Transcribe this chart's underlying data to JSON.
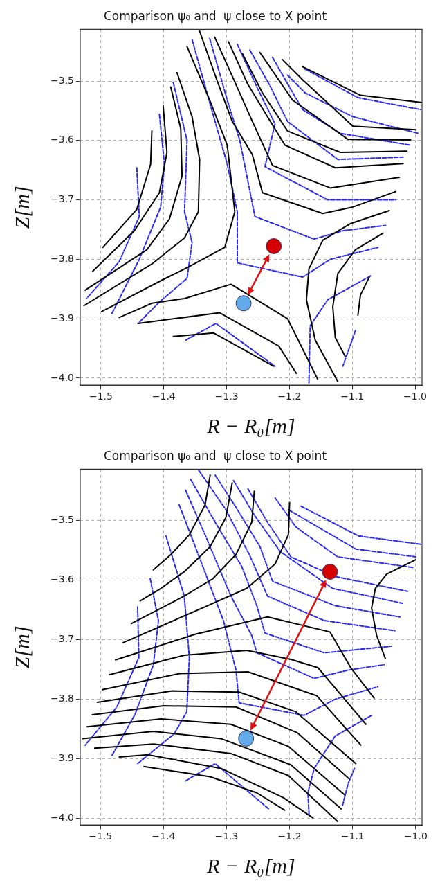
{
  "chart_data": [
    {
      "type": "line",
      "title": "Comparison ψ₀ and  ψ close to X point",
      "xlabel": "R − R₀[m]",
      "ylabel": "Z[m]",
      "xlim": [
        -1.533,
        -0.989
      ],
      "ylim": [
        -4.012,
        -3.413
      ],
      "xticks": [
        {
          "value": -1.5,
          "label": "−1.5"
        },
        {
          "value": -1.4,
          "label": "−1.4"
        },
        {
          "value": -1.3,
          "label": "−1.3"
        },
        {
          "value": -1.2,
          "label": "−1.2"
        },
        {
          "value": -1.1,
          "label": "−1.1"
        },
        {
          "value": -1.0,
          "label": "−1.0"
        }
      ],
      "yticks": [
        {
          "value": -3.5,
          "label": "−3.5"
        },
        {
          "value": -3.6,
          "label": "−3.6"
        },
        {
          "value": -3.7,
          "label": "−3.7"
        },
        {
          "value": -3.8,
          "label": "−3.8"
        },
        {
          "value": -3.9,
          "label": "−3.9"
        },
        {
          "value": -4.0,
          "label": "−4.0"
        }
      ],
      "grid": true,
      "marker": "none",
      "series": [
        {
          "type": "line",
          "color": "#000000",
          "line_style": "solid",
          "x": [
            -1.343,
            -1.315,
            -1.291,
            -1.259,
            -1.243,
            -1.147,
            -1.099,
            -1.031
          ],
          "values": [
            -3.416,
            -3.5,
            -3.568,
            -3.624,
            -3.688,
            -3.723,
            -3.712,
            -3.686
          ]
        },
        {
          "type": "line",
          "color": "#000000",
          "line_style": "solid",
          "x": [
            -1.319,
            -1.291,
            -1.259,
            -1.227,
            -1.135,
            -1.025
          ],
          "values": [
            -3.426,
            -3.492,
            -3.568,
            -3.642,
            -3.68,
            -3.662
          ]
        },
        {
          "type": "line",
          "color": "#000000",
          "line_style": "solid",
          "x": [
            -1.297,
            -1.267,
            -1.235,
            -1.207,
            -1.127,
            -1.019
          ],
          "values": [
            -3.434,
            -3.504,
            -3.56,
            -3.608,
            -3.646,
            -3.639
          ]
        },
        {
          "type": "line",
          "color": "#000000",
          "line_style": "solid",
          "x": [
            -1.275,
            -1.243,
            -1.203,
            -1.119,
            -1.013
          ],
          "values": [
            -3.454,
            -3.52,
            -3.584,
            -3.62,
            -3.618
          ]
        },
        {
          "type": "line",
          "color": "#000000",
          "line_style": "solid",
          "x": [
            -1.247,
            -1.195,
            -1.107,
            -1.007
          ],
          "values": [
            -3.452,
            -3.532,
            -3.598,
            -3.599
          ]
        },
        {
          "type": "line",
          "color": "#000000",
          "line_style": "solid",
          "x": [
            -1.211,
            -1.179,
            -1.099,
            -0.999
          ],
          "values": [
            -3.464,
            -3.498,
            -3.576,
            -3.582
          ]
        },
        {
          "type": "line",
          "color": "#000000",
          "line_style": "solid",
          "x": [
            -1.179,
            -1.087,
            -0.989
          ],
          "values": [
            -3.476,
            -3.524,
            -3.536
          ]
        },
        {
          "type": "line",
          "color": "#000000",
          "line_style": "solid",
          "x": [
            -1.419,
            -1.421,
            -1.443,
            -1.497
          ],
          "values": [
            -3.584,
            -3.64,
            -3.716,
            -3.78
          ]
        },
        {
          "type": "line",
          "color": "#000000",
          "line_style": "solid",
          "x": [
            -1.401,
            -1.395,
            -1.407,
            -1.447,
            -1.513
          ],
          "values": [
            -3.542,
            -3.62,
            -3.688,
            -3.752,
            -3.82
          ]
        },
        {
          "type": "line",
          "color": "#000000",
          "line_style": "solid",
          "x": [
            -1.389,
            -1.373,
            -1.371,
            -1.391,
            -1.427,
            -1.525
          ],
          "values": [
            -3.51,
            -3.58,
            -3.66,
            -3.732,
            -3.784,
            -3.852
          ]
        },
        {
          "type": "line",
          "color": "#000000",
          "line_style": "solid",
          "x": [
            -1.379,
            -1.355,
            -1.343,
            -1.345,
            -1.367,
            -1.419,
            -1.527
          ],
          "values": [
            -3.486,
            -3.56,
            -3.632,
            -3.72,
            -3.764,
            -3.808,
            -3.878
          ]
        },
        {
          "type": "line",
          "color": "#000000",
          "line_style": "solid",
          "x": [
            -1.363,
            -1.327,
            -1.299,
            -1.287,
            -1.303,
            -1.359,
            -1.401,
            -1.499
          ],
          "values": [
            -3.442,
            -3.532,
            -3.608,
            -3.72,
            -3.78,
            -3.812,
            -3.834,
            -3.888
          ]
        },
        {
          "type": "line",
          "color": "#000000",
          "line_style": "solid",
          "x": [
            -1.471,
            -1.419,
            -1.367,
            -1.293,
            -1.203,
            -1.155
          ],
          "values": [
            -3.898,
            -3.874,
            -3.866,
            -3.842,
            -3.9,
            -4.002
          ]
        },
        {
          "type": "line",
          "color": "#000000",
          "line_style": "solid",
          "x": [
            -1.441,
            -1.311,
            -1.217,
            -1.189
          ],
          "values": [
            -3.908,
            -3.89,
            -3.946,
            -3.992
          ]
        },
        {
          "type": "line",
          "color": "#000000",
          "line_style": "solid",
          "x": [
            -1.385,
            -1.321,
            -1.225
          ],
          "values": [
            -3.93,
            -3.924,
            -3.98
          ]
        },
        {
          "type": "line",
          "color": "#000000",
          "line_style": "solid",
          "x": [
            -1.041,
            -1.103,
            -1.147,
            -1.169,
            -1.173,
            -1.159,
            -1.123
          ],
          "values": [
            -3.718,
            -3.74,
            -3.768,
            -3.816,
            -3.868,
            -3.936,
            -4.006
          ]
        },
        {
          "type": "line",
          "color": "#000000",
          "line_style": "solid",
          "x": [
            -1.051,
            -1.095,
            -1.123,
            -1.131,
            -1.127,
            -1.111
          ],
          "values": [
            -3.756,
            -3.784,
            -3.824,
            -3.88,
            -3.932,
            -3.964
          ]
        },
        {
          "type": "line",
          "color": "#000000",
          "line_style": "solid",
          "x": [
            -1.073,
            -1.087,
            -1.091
          ],
          "values": [
            -3.83,
            -3.86,
            -3.894
          ]
        },
        {
          "type": "line",
          "color": "#2b2bf0",
          "line_style": "dashed",
          "x": [
            -1.355,
            -1.327,
            -1.299,
            -1.283,
            -1.283,
            -1.179,
            -1.135,
            -1.059
          ],
          "values": [
            -3.43,
            -3.536,
            -3.64,
            -3.72,
            -3.806,
            -3.83,
            -3.8,
            -3.78
          ]
        },
        {
          "type": "line",
          "color": "#2b2bf0",
          "line_style": "dashed",
          "x": [
            -1.327,
            -1.299,
            -1.279,
            -1.255,
            -1.161,
            -1.115,
            -1.047
          ],
          "values": [
            -3.428,
            -3.532,
            -3.6,
            -3.728,
            -3.766,
            -3.752,
            -3.743
          ]
        },
        {
          "type": "line",
          "color": "#2b2bf0",
          "line_style": "dashed",
          "x": [
            -1.283,
            -1.251,
            -1.223,
            -1.239,
            -1.139,
            -1.031
          ],
          "values": [
            -3.438,
            -3.512,
            -3.572,
            -3.644,
            -3.7,
            -3.7
          ]
        },
        {
          "type": "line",
          "color": "#2b2bf0",
          "line_style": "dashed",
          "x": [
            -1.263,
            -1.231,
            -1.203,
            -1.123,
            -1.019
          ],
          "values": [
            -3.448,
            -3.508,
            -3.568,
            -3.632,
            -3.628
          ]
        },
        {
          "type": "line",
          "color": "#2b2bf0",
          "line_style": "dashed",
          "x": [
            -1.227,
            -1.199,
            -1.179,
            -1.119,
            -1.007
          ],
          "values": [
            -3.46,
            -3.512,
            -3.548,
            -3.588,
            -3.608
          ]
        },
        {
          "type": "line",
          "color": "#2b2bf0",
          "line_style": "dashed",
          "x": [
            -1.203,
            -1.175,
            -1.099,
            -0.995
          ],
          "values": [
            -3.49,
            -3.52,
            -3.56,
            -3.588
          ]
        },
        {
          "type": "line",
          "color": "#2b2bf0",
          "line_style": "dashed",
          "x": [
            -1.175,
            -1.091,
            -0.991
          ],
          "values": [
            -3.48,
            -3.528,
            -3.548
          ]
        },
        {
          "type": "line",
          "color": "#2b2bf0",
          "line_style": "dashed",
          "x": [
            -1.385,
            -1.363,
            -1.367,
            -1.355,
            -1.363,
            -1.407,
            -1.441
          ],
          "values": [
            -3.502,
            -3.6,
            -3.72,
            -3.772,
            -3.832,
            -3.872,
            -3.908
          ]
        },
        {
          "type": "line",
          "color": "#2b2bf0",
          "line_style": "dashed",
          "x": [
            -1.407,
            -1.399,
            -1.405,
            -1.439,
            -1.483
          ],
          "values": [
            -3.556,
            -3.64,
            -3.712,
            -3.8,
            -3.892
          ]
        },
        {
          "type": "line",
          "color": "#2b2bf0",
          "line_style": "dashed",
          "x": [
            -1.443,
            -1.439,
            -1.471,
            -1.523
          ],
          "values": [
            -3.646,
            -3.728,
            -3.804,
            -3.866
          ]
        },
        {
          "type": "line",
          "color": "#2b2bf0",
          "line_style": "dashed",
          "x": [
            -1.365,
            -1.317,
            -1.223
          ],
          "values": [
            -3.936,
            -3.908,
            -3.98
          ]
        },
        {
          "type": "line",
          "color": "#2b2bf0",
          "line_style": "dashed",
          "x": [
            -1.071,
            -1.139,
            -1.167,
            -1.169
          ],
          "values": [
            -3.828,
            -3.868,
            -3.912,
            -4.008
          ]
        },
        {
          "type": "line",
          "color": "#2b2bf0",
          "line_style": "dashed",
          "x": [
            -1.095,
            -1.115
          ],
          "values": [
            -3.92,
            -3.98
          ]
        },
        {
          "type": "scatter",
          "marker": "circle",
          "x": [
            -1.225,
            -1.273
          ],
          "values": [
            -3.778,
            -3.874
          ],
          "colors": [
            "#d40000",
            "#62aae8"
          ]
        }
      ]
    },
    {
      "type": "line",
      "title": "Comparison ψ₀ and  ψ close to X point",
      "xlabel": "R − R₀[m]",
      "ylabel": "Z[m]",
      "xlim": [
        -1.532,
        -0.99
      ],
      "ylim": [
        -4.011,
        -3.414
      ],
      "xticks": [
        {
          "value": -1.5,
          "label": "−1.5"
        },
        {
          "value": -1.4,
          "label": "−1.4"
        },
        {
          "value": -1.3,
          "label": "−1.3"
        },
        {
          "value": -1.2,
          "label": "−1.2"
        },
        {
          "value": -1.1,
          "label": "−1.1"
        },
        {
          "value": -1.0,
          "label": "−1.0"
        }
      ],
      "yticks": [
        {
          "value": -3.5,
          "label": "−3.5"
        },
        {
          "value": -3.6,
          "label": "−3.6"
        },
        {
          "value": -3.7,
          "label": "−3.7"
        },
        {
          "value": -3.8,
          "label": "−3.8"
        },
        {
          "value": -3.9,
          "label": "−3.9"
        },
        {
          "value": -4.0,
          "label": "−4.0"
        }
      ],
      "grid": true,
      "marker": "none",
      "series": [
        {
          "type": "line",
          "color": "#000000",
          "line_style": "solid",
          "x": [
            -1.326,
            -1.334,
            -1.359,
            -1.388,
            -1.416
          ],
          "values": [
            -3.424,
            -3.474,
            -3.524,
            -3.557,
            -3.583
          ]
        },
        {
          "type": "line",
          "color": "#000000",
          "line_style": "solid",
          "x": [
            -1.291,
            -1.301,
            -1.326,
            -1.367,
            -1.404,
            -1.437
          ],
          "values": [
            -3.437,
            -3.495,
            -3.544,
            -3.586,
            -3.614,
            -3.635
          ]
        },
        {
          "type": "line",
          "color": "#000000",
          "line_style": "solid",
          "x": [
            -1.256,
            -1.26,
            -1.285,
            -1.322,
            -1.367,
            -1.451
          ],
          "values": [
            -3.451,
            -3.503,
            -3.557,
            -3.598,
            -3.627,
            -3.673
          ]
        },
        {
          "type": "line",
          "color": "#000000",
          "line_style": "solid",
          "x": [
            -1.2,
            -1.202,
            -1.223,
            -1.268,
            -1.334,
            -1.464
          ],
          "values": [
            -3.47,
            -3.524,
            -3.573,
            -3.614,
            -3.645,
            -3.705
          ]
        },
        {
          "type": "line",
          "color": "#000000",
          "line_style": "solid",
          "x": [
            -1.476,
            -1.35,
            -1.235,
            -1.136,
            -1.103,
            -1.066
          ],
          "values": [
            -3.734,
            -3.691,
            -3.662,
            -3.687,
            -3.747,
            -3.798
          ]
        },
        {
          "type": "line",
          "color": "#000000",
          "line_style": "solid",
          "x": [
            -1.486,
            -1.367,
            -1.268,
            -1.198,
            -1.155,
            -1.079
          ],
          "values": [
            -3.759,
            -3.726,
            -3.718,
            -3.733,
            -3.747,
            -3.842
          ]
        },
        {
          "type": "line",
          "color": "#000000",
          "line_style": "solid",
          "x": [
            -1.497,
            -1.375,
            -1.266,
            -1.157,
            -1.087
          ],
          "values": [
            -3.784,
            -3.757,
            -3.754,
            -3.794,
            -3.877
          ]
        },
        {
          "type": "line",
          "color": "#000000",
          "line_style": "solid",
          "x": [
            -1.505,
            -1.386,
            -1.28,
            -1.19,
            -1.095
          ],
          "values": [
            -3.805,
            -3.786,
            -3.788,
            -3.821,
            -3.908
          ]
        },
        {
          "type": "line",
          "color": "#000000",
          "line_style": "solid",
          "x": [
            -1.513,
            -1.4,
            -1.285,
            -1.188,
            -1.105
          ],
          "values": [
            -3.826,
            -3.811,
            -3.813,
            -3.856,
            -3.934
          ]
        },
        {
          "type": "line",
          "color": "#000000",
          "line_style": "solid",
          "x": [
            -1.521,
            -1.404,
            -1.293,
            -1.202,
            -1.112
          ],
          "values": [
            -3.846,
            -3.833,
            -3.842,
            -3.879,
            -3.961
          ]
        },
        {
          "type": "line",
          "color": "#000000",
          "line_style": "solid",
          "x": [
            -1.528,
            -1.416,
            -1.309,
            -1.198,
            -1.118
          ],
          "values": [
            -3.866,
            -3.854,
            -3.866,
            -3.91,
            -3.984
          ]
        },
        {
          "type": "line",
          "color": "#000000",
          "line_style": "solid",
          "x": [
            -1.509,
            -1.416,
            -1.293,
            -1.202,
            -1.124
          ],
          "values": [
            -3.882,
            -3.875,
            -3.891,
            -3.928,
            -4.005
          ]
        },
        {
          "type": "line",
          "color": "#000000",
          "line_style": "solid",
          "x": [
            -1.47,
            -1.425,
            -1.309,
            -1.21,
            -1.163
          ],
          "values": [
            -3.897,
            -3.893,
            -3.916,
            -3.965,
            -3.999
          ]
        },
        {
          "type": "line",
          "color": "#000000",
          "line_style": "solid",
          "x": [
            -1.431,
            -1.326,
            -1.252,
            -1.208
          ],
          "values": [
            -3.913,
            -3.93,
            -3.957,
            -3.986
          ]
        },
        {
          "type": "line",
          "color": "#000000",
          "line_style": "solid",
          "x": [
            -1.0,
            -1.046,
            -1.064,
            -1.07,
            -1.062,
            -1.048
          ],
          "values": [
            -3.566,
            -3.59,
            -3.614,
            -3.647,
            -3.693,
            -3.732
          ]
        },
        {
          "type": "line",
          "color": "#2b2bf0",
          "line_style": "dashed",
          "x": [
            -1.375,
            -1.342,
            -1.305,
            -1.285,
            -1.28,
            -1.177,
            -1.128,
            -1.06
          ],
          "values": [
            -3.474,
            -3.565,
            -3.668,
            -3.751,
            -3.806,
            -3.827,
            -3.8,
            -3.779
          ]
        },
        {
          "type": "line",
          "color": "#2b2bf0",
          "line_style": "dashed",
          "x": [
            -1.365,
            -1.334,
            -1.293,
            -1.26,
            -1.252,
            -1.161,
            -1.107,
            -1.05
          ],
          "values": [
            -3.449,
            -3.524,
            -3.627,
            -3.693,
            -3.722,
            -3.765,
            -3.751,
            -3.742
          ]
        },
        {
          "type": "line",
          "color": "#2b2bf0",
          "line_style": "dashed",
          "x": [
            -1.357,
            -1.318,
            -1.276,
            -1.252,
            -1.239,
            -1.145,
            -1.039
          ],
          "values": [
            -3.431,
            -3.503,
            -3.577,
            -3.643,
            -3.689,
            -3.722,
            -3.711
          ]
        },
        {
          "type": "line",
          "color": "#2b2bf0",
          "line_style": "dashed",
          "x": [
            -1.344,
            -1.301,
            -1.264,
            -1.235,
            -1.145,
            -1.033
          ],
          "values": [
            -3.416,
            -3.482,
            -3.557,
            -3.627,
            -3.668,
            -3.685
          ]
        },
        {
          "type": "line",
          "color": "#2b2bf0",
          "line_style": "dashed",
          "x": [
            -1.318,
            -1.285,
            -1.247,
            -1.227,
            -1.128,
            -1.025
          ],
          "values": [
            -3.424,
            -3.478,
            -3.544,
            -3.602,
            -3.643,
            -3.662
          ]
        },
        {
          "type": "line",
          "color": "#2b2bf0",
          "line_style": "dashed",
          "x": [
            -1.289,
            -1.256,
            -1.215,
            -1.132,
            -1.021
          ],
          "values": [
            -3.433,
            -3.491,
            -3.552,
            -3.614,
            -3.639
          ]
        },
        {
          "type": "line",
          "color": "#2b2bf0",
          "line_style": "dashed",
          "x": [
            -1.266,
            -1.235,
            -1.198,
            -1.128,
            -1.013
          ],
          "values": [
            -3.447,
            -3.503,
            -3.561,
            -3.594,
            -3.619
          ]
        },
        {
          "type": "line",
          "color": "#2b2bf0",
          "line_style": "dashed",
          "x": [
            -1.223,
            -1.19,
            -1.124,
            -1.004
          ],
          "values": [
            -3.462,
            -3.511,
            -3.561,
            -3.579
          ]
        },
        {
          "type": "line",
          "color": "#2b2bf0",
          "line_style": "dashed",
          "x": [
            -1.182,
            -1.091,
            -0.992
          ],
          "values": [
            -3.476,
            -3.526,
            -3.54
          ]
        },
        {
          "type": "line",
          "color": "#2b2bf0",
          "line_style": "dashed",
          "x": [
            -1.202,
            -1.095,
            -1.0
          ],
          "values": [
            -3.482,
            -3.548,
            -3.561
          ]
        },
        {
          "type": "line",
          "color": "#2b2bf0",
          "line_style": "dashed",
          "x": [
            -1.441,
            -1.439,
            -1.474,
            -1.524
          ],
          "values": [
            -3.645,
            -3.73,
            -3.813,
            -3.877
          ]
        },
        {
          "type": "line",
          "color": "#2b2bf0",
          "line_style": "dashed",
          "x": [
            -1.421,
            -1.408,
            -1.416,
            -1.445,
            -1.482
          ],
          "values": [
            -3.598,
            -3.668,
            -3.742,
            -3.825,
            -3.895
          ]
        },
        {
          "type": "line",
          "color": "#2b2bf0",
          "line_style": "dashed",
          "x": [
            -1.396,
            -1.367,
            -1.359,
            -1.363,
            -1.383,
            -1.441
          ],
          "values": [
            -3.526,
            -3.627,
            -3.73,
            -3.821,
            -3.858,
            -3.908
          ]
        },
        {
          "type": "line",
          "color": "#2b2bf0",
          "line_style": "dashed",
          "x": [
            -1.365,
            -1.318,
            -1.232
          ],
          "values": [
            -3.937,
            -3.908,
            -3.985
          ]
        },
        {
          "type": "line",
          "color": "#2b2bf0",
          "line_style": "dashed",
          "x": [
            -1.07,
            -1.128,
            -1.161,
            -1.171,
            -1.169
          ],
          "values": [
            -3.827,
            -3.862,
            -3.916,
            -3.957,
            -3.996
          ]
        },
        {
          "type": "line",
          "color": "#2b2bf0",
          "line_style": "dashed",
          "x": [
            -1.097,
            -1.107,
            -1.116
          ],
          "values": [
            -3.916,
            -3.941,
            -3.978
          ]
        },
        {
          "type": "scatter",
          "marker": "circle",
          "x": [
            -1.136,
            -1.269
          ],
          "values": [
            -3.586,
            -3.866
          ],
          "colors": [
            "#d40000",
            "#62aae8"
          ]
        }
      ]
    }
  ]
}
